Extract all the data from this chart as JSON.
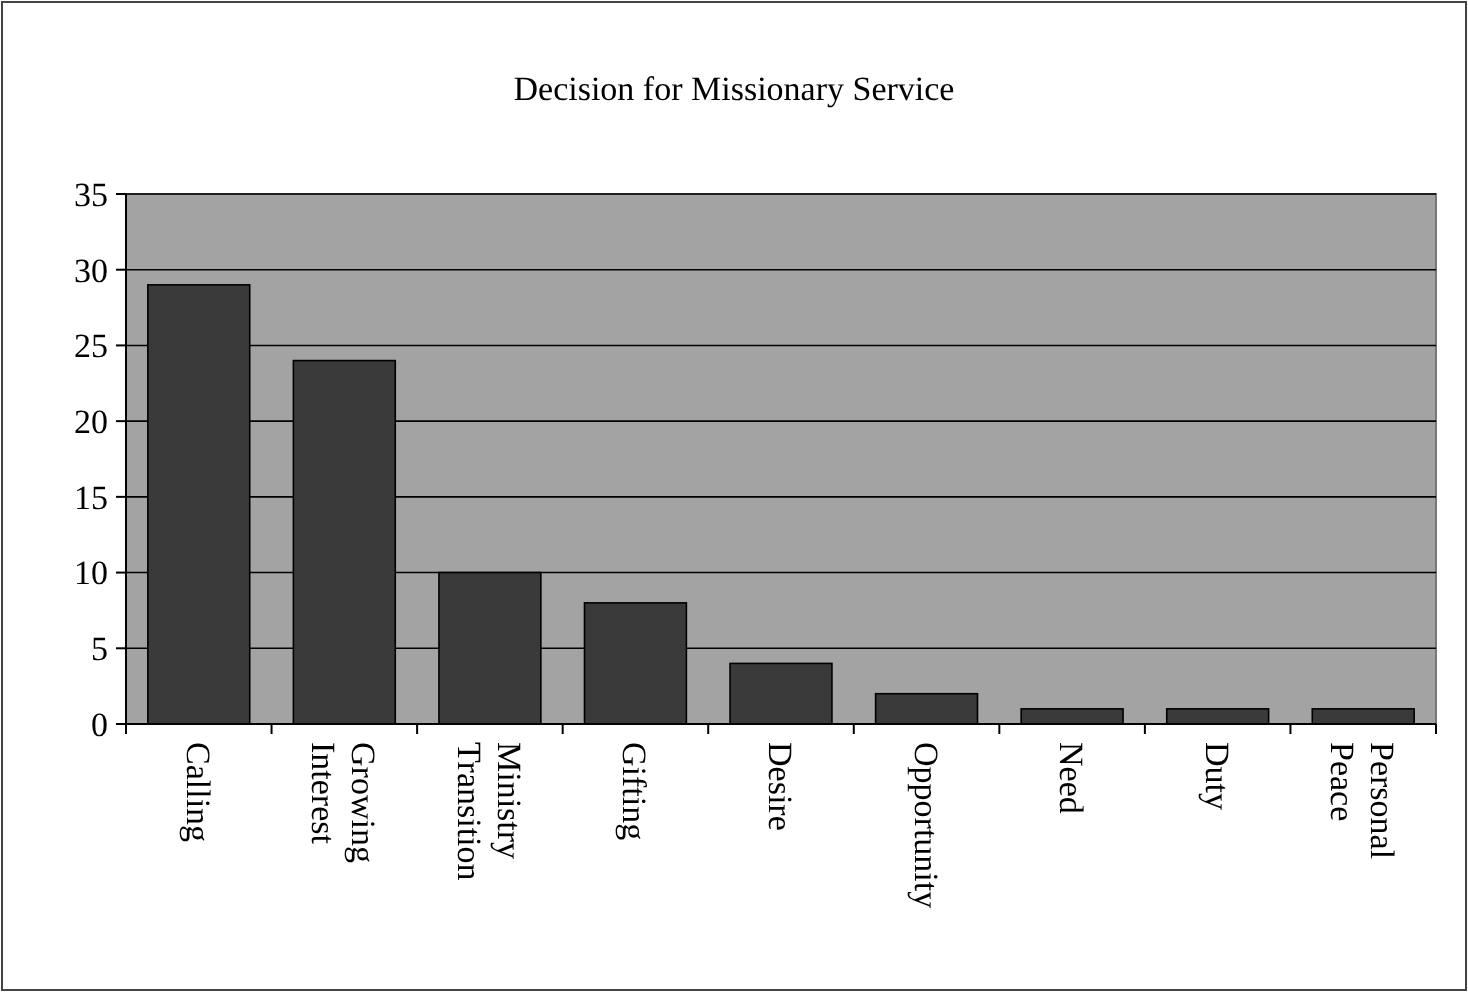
{
  "chart_data": {
    "type": "bar",
    "title": "Decision for Missionary Service",
    "categories": [
      "Calling",
      "Growing Interest",
      "Ministry Transition",
      "Gifting",
      "Desire",
      "Opportunity",
      "Need",
      "Duty",
      "Personal Peace"
    ],
    "values": [
      29,
      24,
      10,
      8,
      4,
      2,
      1,
      1,
      1
    ],
    "color": "#3a3a3a",
    "ylim": [
      0,
      35
    ],
    "yticks": [
      0,
      5,
      10,
      15,
      20,
      25,
      30,
      35
    ],
    "grid": "y"
  }
}
